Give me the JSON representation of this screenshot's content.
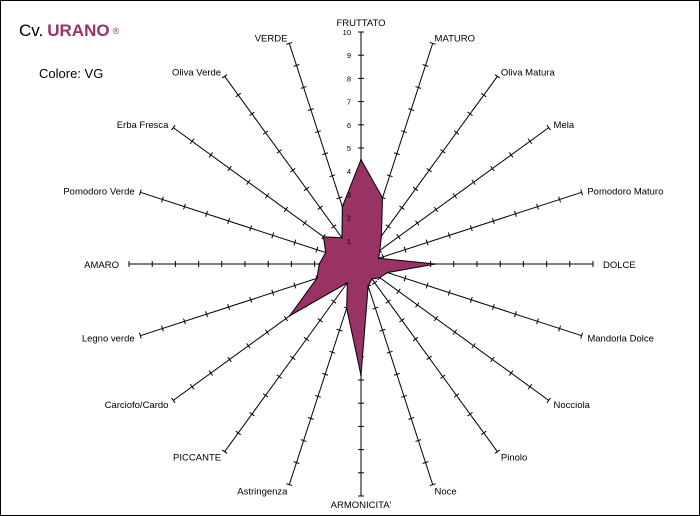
{
  "header": {
    "cv_prefix": "Cv.",
    "cultivar_name": "URANO",
    "registered_mark": "®",
    "color_label": "Colore: VG"
  },
  "colors": {
    "series_fill": "#993366",
    "axis": "#000000"
  },
  "chart_data": {
    "type": "radar",
    "title": "",
    "axes": [
      "FRUTTATO",
      "MATURO",
      "Oliva Matura",
      "Mela",
      "Pomodoro Maturo",
      "DOLCE",
      "Mandorla Dolce",
      "Nocciola",
      "Pinolo",
      "Noce",
      "ARMONICITA'",
      "Astringenza",
      "PICCANTE",
      "Carciofo/Cardo",
      "Legno verde",
      "AMARO",
      "Pomodoro Verde",
      "Erba Fresca",
      "Oliva Verde",
      "VERDE"
    ],
    "radial_range": [
      0,
      10
    ],
    "radial_ticks": [
      1,
      2,
      3,
      4,
      5,
      6,
      7,
      8,
      9,
      10
    ],
    "series": [
      {
        "name": "",
        "values": [
          4.5,
          3,
          1.5,
          1,
          0.8,
          3.2,
          1.2,
          1,
          0.8,
          1,
          4.8,
          2,
          1,
          3.8,
          2,
          1.8,
          1.6,
          2,
          1.4,
          2.6
        ]
      }
    ]
  }
}
